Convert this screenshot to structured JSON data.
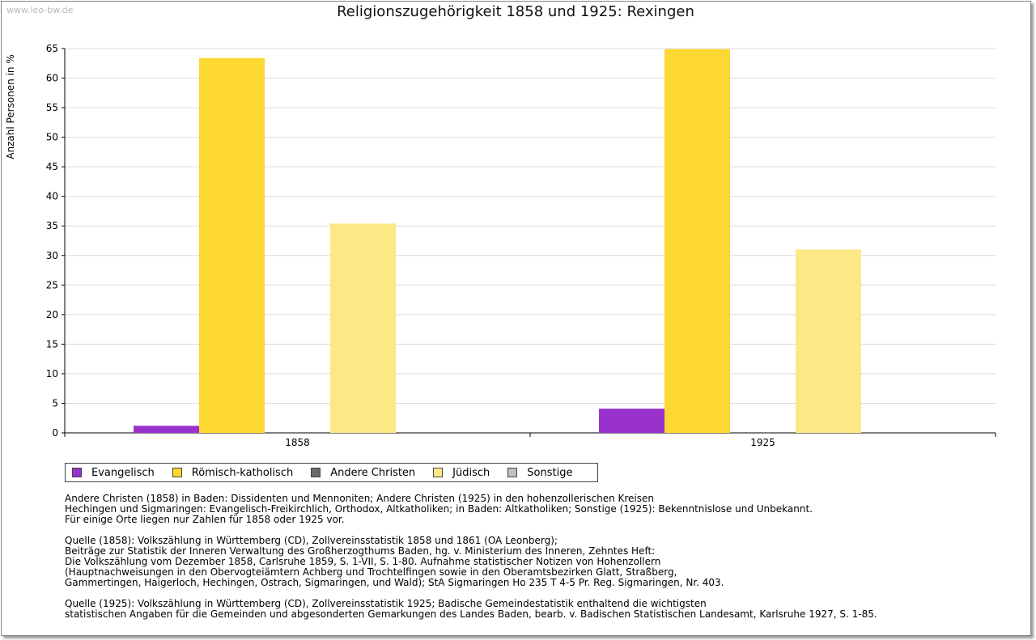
{
  "watermark": "www.leo-bw.de",
  "chart_data": {
    "type": "bar",
    "title": "Religionszugehörigkeit 1858 und 1925: Rexingen",
    "ylabel": "Anzahl Personen in %",
    "xlabel": "",
    "ylim": [
      0,
      65
    ],
    "yticks": [
      0,
      5,
      10,
      15,
      20,
      25,
      30,
      35,
      40,
      45,
      50,
      55,
      60,
      65
    ],
    "grid": true,
    "legend_position": "bottom",
    "categories": [
      "1858",
      "1925"
    ],
    "series": [
      {
        "name": "Evangelisch",
        "color": "#9932cc",
        "values": [
          1.2,
          4.1
        ]
      },
      {
        "name": "Römisch-katholisch",
        "color": "#fdd732",
        "values": [
          63.4,
          64.9
        ]
      },
      {
        "name": "Andere Christen",
        "color": "#696969",
        "values": [
          0,
          0
        ]
      },
      {
        "name": "Jüdisch",
        "color": "#fde886",
        "values": [
          35.4,
          31.0
        ]
      },
      {
        "name": "Sonstige",
        "color": "#c0c0c0",
        "values": [
          0,
          0
        ]
      }
    ]
  },
  "notes": [
    [
      "Andere Christen (1858) in Baden: Dissidenten und Mennoniten; Andere Christen (1925) in den hohenzollerischen Kreisen",
      "Hechingen und Sigmaringen: Evangelisch-Freikirchlich, Orthodox, Altkatholiken; in Baden: Altkatholiken; Sonstige (1925): Bekenntnislose und Unbekannt.",
      "Für einige Orte liegen nur Zahlen für 1858 oder 1925 vor."
    ],
    [
      "Quelle (1858): Volkszählung in Württemberg (CD), Zollvereinsstatistik 1858 und 1861 (OA Leonberg);",
      "Beiträge zur Statistik der Inneren Verwaltung des Großherzogthums Baden, hg. v. Ministerium des Inneren, Zehntes Heft:",
      "Die Volkszählung vom Dezember 1858, Carlsruhe 1859, S. 1-VII, S. 1-80. Aufnahme statistischer Notizen von Hohenzollern",
      "(Hauptnachweisungen in den Obervogteiämtern Achberg und Trochtelfingen sowie in den Oberamtsbezirken Glatt, Straßberg,",
      "Gammertingen, Haigerloch, Hechingen, Ostrach, Sigmaringen, und Wald); StA Sigmaringen Ho 235 T 4-5 Pr. Reg. Sigmaringen, Nr. 403."
    ],
    [
      "Quelle (1925): Volkszählung in Württemberg (CD), Zollvereinsstatistik 1925; Badische Gemeindestatistik enthaltend die wichtigsten",
      "statistischen Angaben für die Gemeinden und abgesonderten Gemarkungen des Landes Baden, bearb. v. Badischen Statistischen Landesamt, Karlsruhe 1927, S. 1-85."
    ]
  ]
}
